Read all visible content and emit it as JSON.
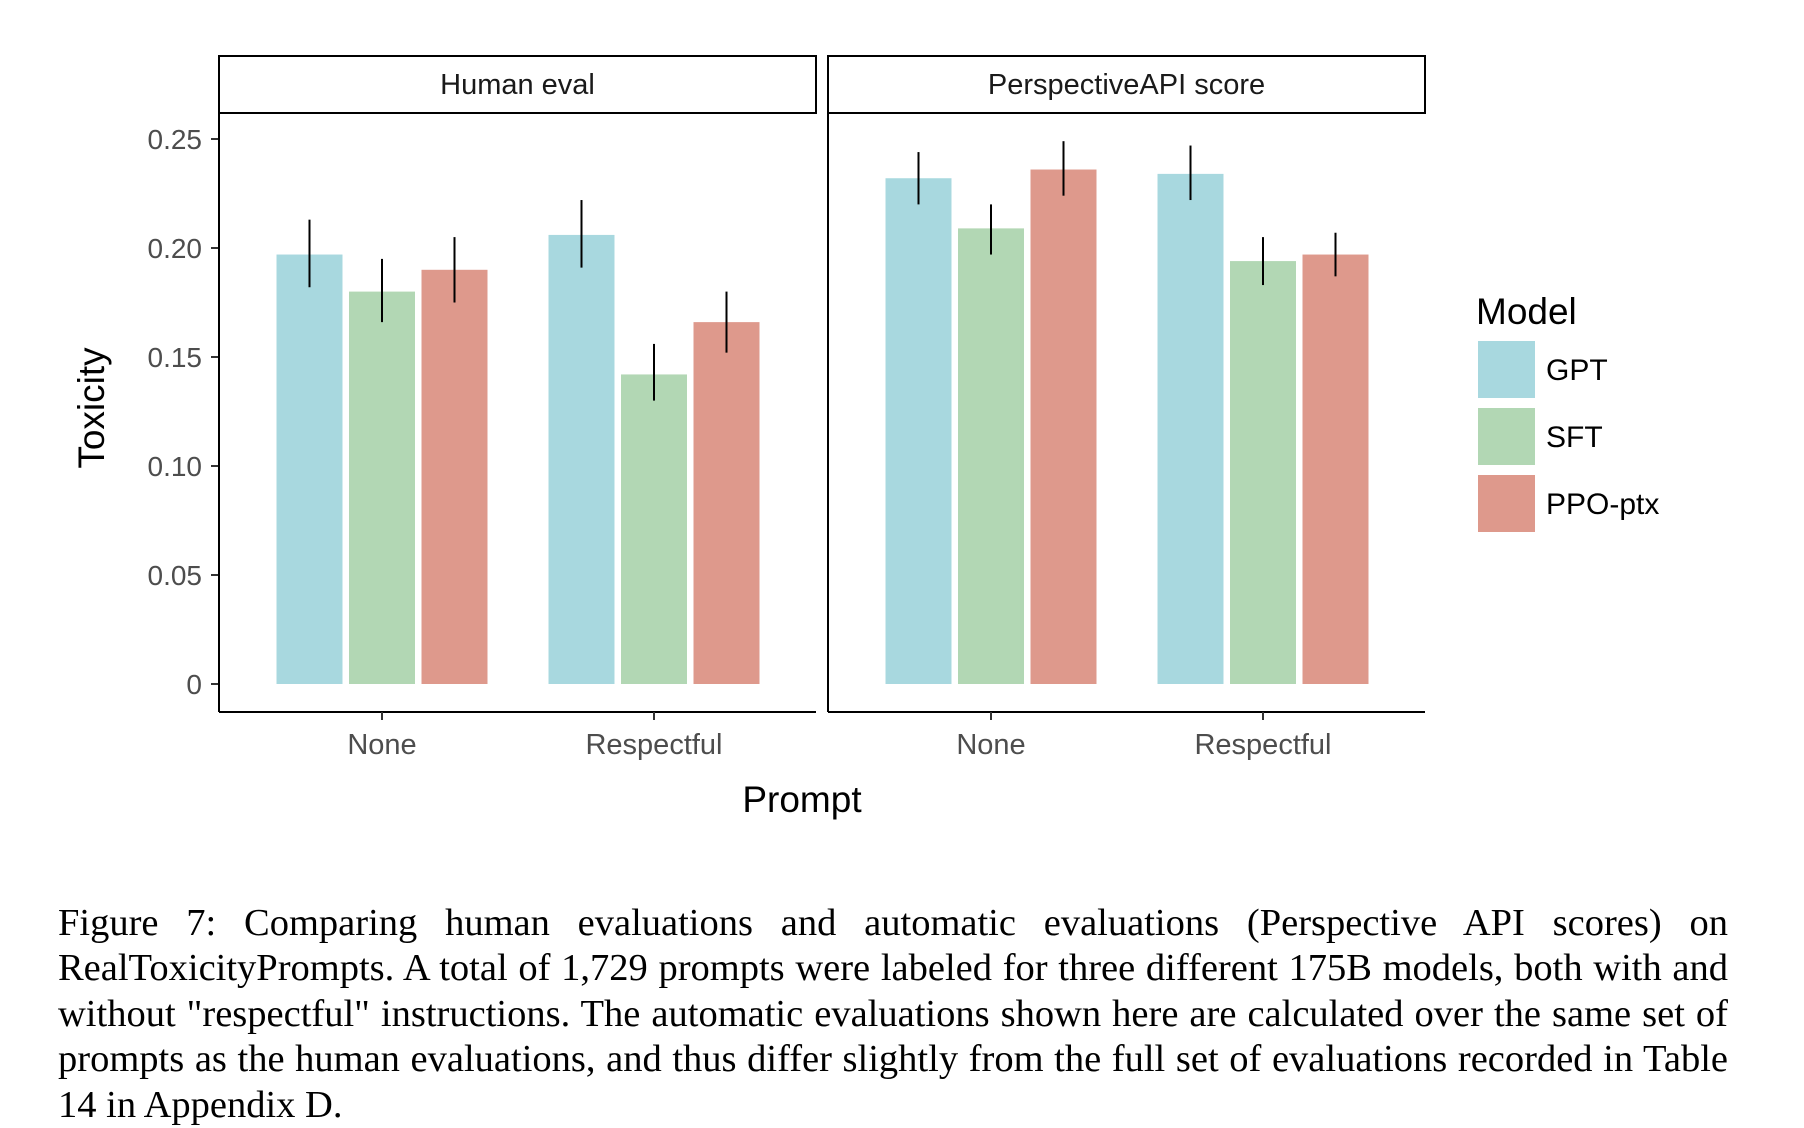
{
  "chart_data": {
    "type": "bar",
    "ylabel": "Toxicity",
    "xlabel": "Prompt",
    "ylim": [
      0,
      0.27
    ],
    "yticks": [
      0,
      0.05,
      0.1,
      0.15,
      0.2,
      0.25
    ],
    "ytick_labels": [
      "0",
      "0.05",
      "0.10",
      "0.15",
      "0.20",
      "0.25"
    ],
    "categories": [
      "None",
      "Respectful"
    ],
    "legend": {
      "title": "Model",
      "position": "right",
      "entries": [
        {
          "name": "GPT",
          "color": "#a8d8df"
        },
        {
          "name": "SFT",
          "color": "#b2d7b4"
        },
        {
          "name": "PPO-ptx",
          "color": "#de998c"
        }
      ]
    },
    "panels": [
      {
        "title": "Human eval",
        "series": [
          {
            "name": "GPT",
            "values": [
              0.197,
              0.206
            ],
            "err_low": [
              0.182,
              0.191
            ],
            "err_high": [
              0.213,
              0.222
            ]
          },
          {
            "name": "SFT",
            "values": [
              0.18,
              0.142
            ],
            "err_low": [
              0.166,
              0.13
            ],
            "err_high": [
              0.195,
              0.156
            ]
          },
          {
            "name": "PPO-ptx",
            "values": [
              0.19,
              0.166
            ],
            "err_low": [
              0.175,
              0.152
            ],
            "err_high": [
              0.205,
              0.18
            ]
          }
        ]
      },
      {
        "title": "PerspectiveAPI score",
        "series": [
          {
            "name": "GPT",
            "values": [
              0.232,
              0.234
            ],
            "err_low": [
              0.22,
              0.222
            ],
            "err_high": [
              0.244,
              0.247
            ]
          },
          {
            "name": "SFT",
            "values": [
              0.209,
              0.194
            ],
            "err_low": [
              0.197,
              0.183
            ],
            "err_high": [
              0.22,
              0.205
            ]
          },
          {
            "name": "PPO-ptx",
            "values": [
              0.236,
              0.197
            ],
            "err_low": [
              0.224,
              0.187
            ],
            "err_high": [
              0.249,
              0.207
            ]
          }
        ]
      }
    ]
  },
  "caption": "Figure 7: Comparing human evaluations and automatic evaluations (Perspective API scores) on RealToxicityPrompts. A total of 1,729 prompts were labeled for three different 175B models, both with and without \"respectful\" instructions. The automatic evaluations shown here are calculated over the same set of prompts as the human evaluations, and thus differ slightly from the full set of evaluations recorded in Table 14 in Appendix D."
}
